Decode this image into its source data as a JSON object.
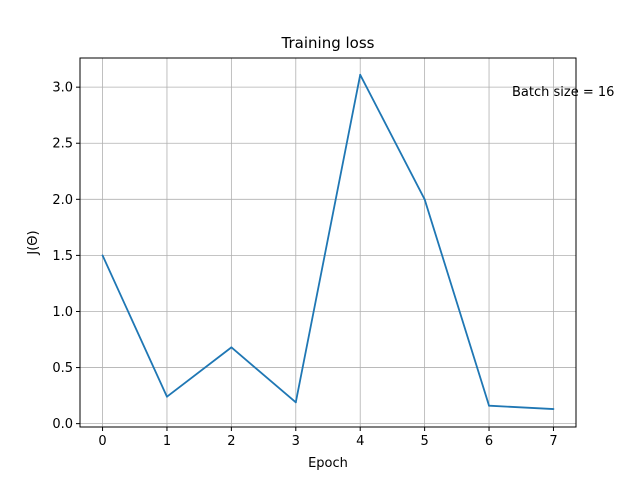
{
  "chart_data": {
    "type": "line",
    "title": "Training loss",
    "xlabel": "Epoch",
    "ylabel": "J(Θ)",
    "annotation": "Batch size = 16",
    "x": [
      0,
      1,
      2,
      3,
      4,
      5,
      6,
      7
    ],
    "series": [
      {
        "values": [
          1.5,
          0.24,
          0.68,
          0.19,
          3.11,
          2.0,
          0.16,
          0.13
        ],
        "color": "#1f77b4"
      }
    ],
    "xlim": [
      -0.35,
      7.35
    ],
    "ylim": [
      -0.03,
      3.26
    ],
    "xticks": [
      "0",
      "1",
      "2",
      "3",
      "4",
      "5",
      "6",
      "7"
    ],
    "yticks": [
      "0.0",
      "0.5",
      "1.0",
      "1.5",
      "2.0",
      "2.5",
      "3.0"
    ],
    "grid": true
  }
}
